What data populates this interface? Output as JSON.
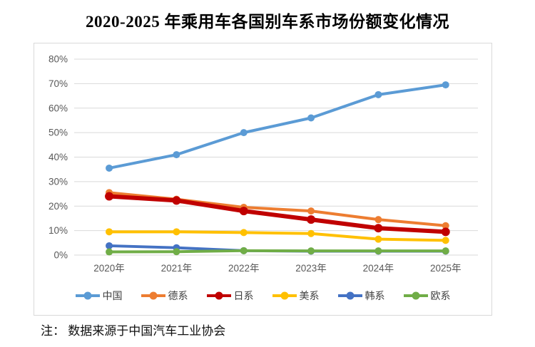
{
  "page": {
    "title": "2020-2025 年乘用车各国别车系市场份额变化情况",
    "note": "注： 数据来源于中国汽车工业协会"
  },
  "chart_data": {
    "type": "line",
    "title": "2020-2025 年乘用车各国别车系市场份额变化情况",
    "categories": [
      "2020年",
      "2021年",
      "2022年",
      "2023年",
      "2024年",
      "2025年"
    ],
    "series": [
      {
        "name": "中国",
        "color": "#5B9BD5",
        "line_width": 4,
        "values": [
          35.5,
          41,
          50,
          56,
          65.5,
          69.5
        ]
      },
      {
        "name": "德系",
        "color": "#ED7D31",
        "line_width": 4,
        "values": [
          25.5,
          22.8,
          19.5,
          18,
          14.5,
          12
        ]
      },
      {
        "name": "日系",
        "color": "#C00000",
        "line_width": 6,
        "values": [
          24,
          22.3,
          18,
          14.5,
          11,
          9.5
        ]
      },
      {
        "name": "美系",
        "color": "#FFC000",
        "line_width": 4,
        "values": [
          9.5,
          9.5,
          9.2,
          8.8,
          6.5,
          6
        ]
      },
      {
        "name": "韩系",
        "color": "#4472C4",
        "line_width": 4,
        "values": [
          3.8,
          3,
          1.8,
          1.6,
          1.6,
          1.6
        ]
      },
      {
        "name": "欧系",
        "color": "#70AD47",
        "line_width": 4,
        "values": [
          1.3,
          1.4,
          1.8,
          1.7,
          1.7,
          1.7
        ]
      }
    ],
    "ylim": [
      0,
      80
    ],
    "ytick_step": 10,
    "ytick_labels": [
      "0%",
      "10%",
      "20%",
      "30%",
      "40%",
      "50%",
      "60%",
      "70%",
      "80%"
    ],
    "grid": true,
    "gridline_color": "#d9d9d9",
    "legend_position": "bottom",
    "source_note": "注： 数据来源于中国汽车工业协会"
  }
}
